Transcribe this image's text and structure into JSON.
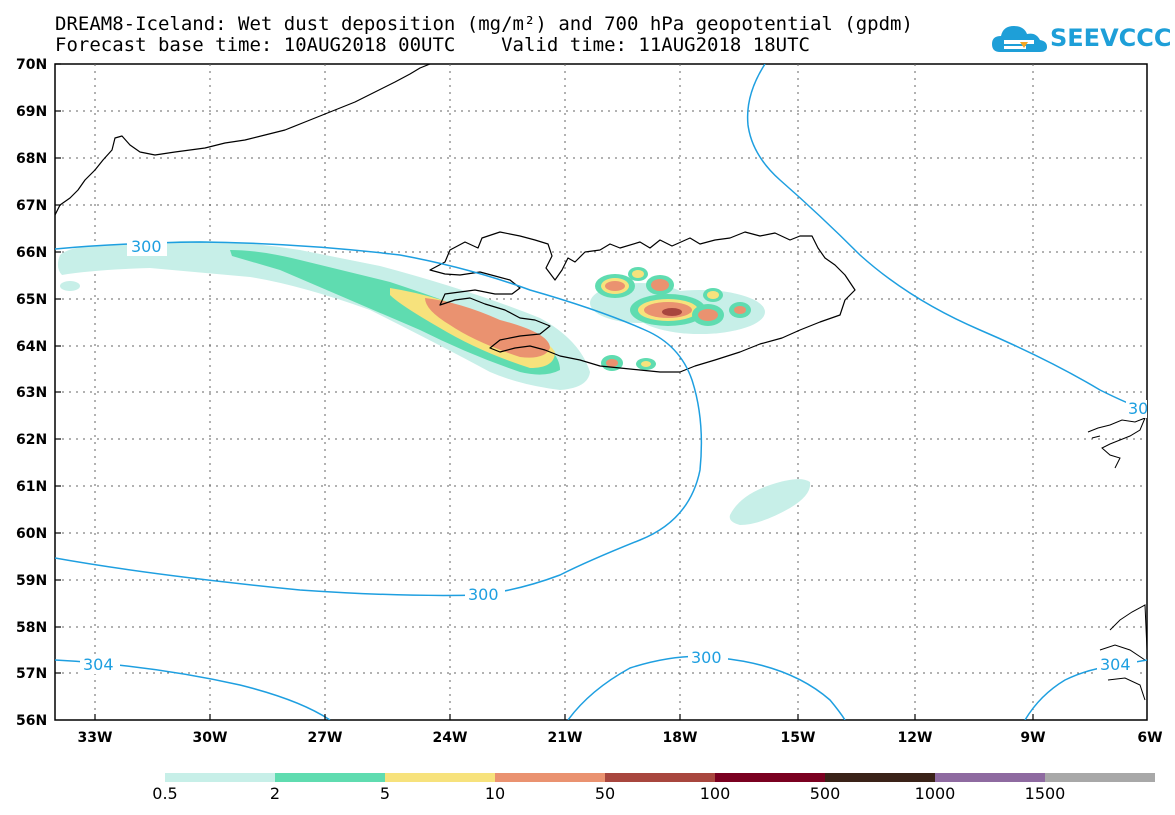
{
  "header": {
    "title_line1": "DREAM8-Iceland: Wet dust deposition (mg/m²) and 700 hPa geopotential (gpdm)",
    "title_line2": "Forecast base time: 10AUG2018 00UTC    Valid time: 11AUG2018 18UTC"
  },
  "logo": {
    "text": "SEEVCCC",
    "icon": "cloud-icon",
    "color": "#1e9fd8"
  },
  "map": {
    "lat_labels": [
      "70N",
      "69N",
      "68N",
      "67N",
      "66N",
      "65N",
      "64N",
      "63N",
      "62N",
      "61N",
      "60N",
      "59N",
      "58N",
      "57N",
      "56N"
    ],
    "lon_labels": [
      "33W",
      "30W",
      "27W",
      "24W",
      "21W",
      "18W",
      "15W",
      "12W",
      "9W",
      "6W"
    ],
    "contour_color": "#1e9fe0",
    "contour_labels": [
      "300",
      "300",
      "300",
      "304",
      "304",
      "30"
    ],
    "coastline_color": "#000000"
  },
  "legend": {
    "colors": [
      "#c7efe8",
      "#5fdcb0",
      "#f7e27c",
      "#ea9270",
      "#a8463e",
      "#7a0020",
      "#3a2218",
      "#8e6aa0",
      "#a8a8a8"
    ],
    "labels": [
      "0.5",
      "2",
      "5",
      "10",
      "50",
      "100",
      "500",
      "1000",
      "1500"
    ]
  }
}
